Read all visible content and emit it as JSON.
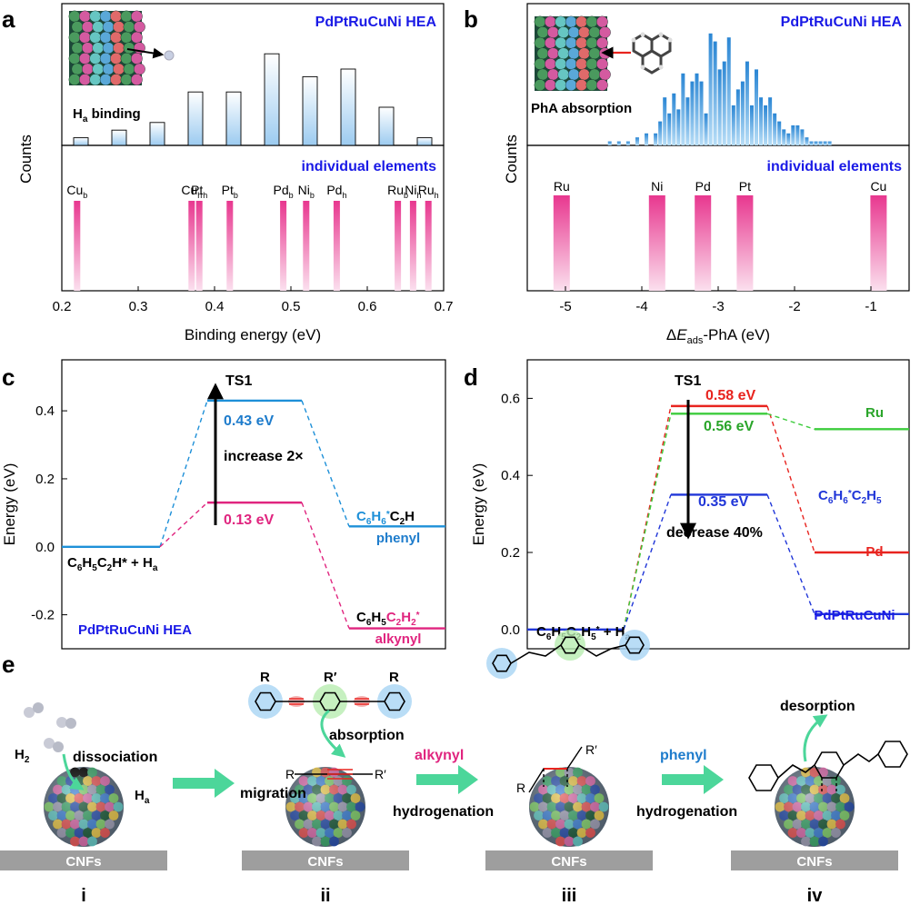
{
  "panel_labels": {
    "a": "a",
    "b": "b",
    "c": "c",
    "d": "d",
    "e": "e"
  },
  "colors": {
    "blue_text": "#1a1ae6",
    "bar_light_blue": "#bcdcf4",
    "bar_blue": "#3c96dc",
    "pink": "#e8378f",
    "pink_light": "#f9bcd8",
    "cyan_line": "#1e90d8",
    "magenta_line": "#e0257f",
    "red_line": "#e8241f",
    "green_line": "#3ccc3c",
    "navy_line": "#2036d8",
    "arrow_green": "#4cd69a",
    "support_grey": "#9e9e9e"
  },
  "panel_a": {
    "title": "PdPtRuCuNi HEA",
    "top_label_main": "H",
    "top_label_sub": "a",
    "top_label_rest": " binding",
    "bottom_title": "individual elements",
    "ylabel": "Counts",
    "xlabel": "Binding energy (eV)"
  },
  "panel_b": {
    "title": "PdPtRuCuNi HEA",
    "top_label": "PhA absorption",
    "bottom_title": "individual elements",
    "ylabel": "Counts",
    "xlabel_prefix": "Δ",
    "xlabel_italic": "E",
    "xlabel_sub": "ads",
    "xlabel_rest": "-PhA (eV)"
  },
  "panel_c": {
    "ylabel": "Energy (eV)",
    "ts_label": "TS1",
    "phenyl_barrier": "0.43 eV",
    "alkynyl_barrier": "0.13 eV",
    "increase_label": "increase 2×",
    "initial_state": "C6H5C2H* + Ha",
    "phenyl_product": "C6H6*C2H",
    "phenyl_word": "phenyl",
    "alkynyl_product": "C6H5C2H2*",
    "alkynyl_word": "alkynyl",
    "system": "PdPtRuCuNi HEA"
  },
  "panel_d": {
    "ylabel": "Energy (eV)",
    "ts_label": "TS1",
    "pd_barrier": "0.58 eV",
    "ru_barrier": "0.56 eV",
    "hea_barrier": "0.35 eV",
    "decrease_label": "decrease 40%",
    "initial_state": "C6H5C2H5* + Ha",
    "product": "C6H6*C2H5",
    "ru_label": "Ru",
    "pd_label": "Pd",
    "hea_label": "PdPtRuCuNi"
  },
  "panel_e": {
    "h2": "H2",
    "dissociation": "dissociation",
    "ha": "Ha",
    "support": "CNFs",
    "absorption": "absorption",
    "migration": "migration",
    "r_left": "R",
    "r_prime_top": "R′",
    "r_right": "R",
    "r_chain_left": "R",
    "r_chain_right": "R′",
    "alkynyl": "alkynyl",
    "hydrogenation": "hydrogenation",
    "phenyl": "phenyl",
    "desorption": "desorption",
    "steps": [
      "i",
      "ii",
      "iii",
      "iv"
    ]
  },
  "chart_data": [
    {
      "id": "a-top",
      "type": "bar",
      "title": "PdPtRuCuNi HEA",
      "xlabel": "Binding energy (eV)",
      "ylabel": "Counts",
      "xlim": [
        0.2,
        0.7
      ],
      "x": [
        0.225,
        0.275,
        0.325,
        0.375,
        0.425,
        0.475,
        0.525,
        0.575,
        0.625,
        0.675
      ],
      "values": [
        1,
        2,
        3,
        7,
        7,
        12,
        9,
        10,
        5,
        1
      ]
    },
    {
      "id": "a-bottom",
      "type": "bar",
      "title": "individual elements",
      "xlim": [
        0.2,
        0.7
      ],
      "xticks": [
        0.2,
        0.3,
        0.4,
        0.5,
        0.6,
        0.7
      ],
      "elements": [
        {
          "el": "Cu",
          "site": "b",
          "x": 0.22
        },
        {
          "el": "Cu",
          "site": "h",
          "x": 0.37
        },
        {
          "el": "Pt",
          "site": "h",
          "x": 0.38
        },
        {
          "el": "Pt",
          "site": "b",
          "x": 0.42
        },
        {
          "el": "Pd",
          "site": "b",
          "x": 0.49
        },
        {
          "el": "Ni",
          "site": "b",
          "x": 0.52
        },
        {
          "el": "Pd",
          "site": "h",
          "x": 0.56
        },
        {
          "el": "Ru",
          "site": "b",
          "x": 0.64
        },
        {
          "el": "Ni",
          "site": "h",
          "x": 0.66
        },
        {
          "el": "Ru",
          "site": "h",
          "x": 0.68
        }
      ]
    },
    {
      "id": "b-top",
      "type": "bar",
      "title": "PdPtRuCuNi HEA",
      "xlabel": "ΔEads-PhA (eV)",
      "ylabel": "Counts",
      "xlim": [
        -5.5,
        -0.5
      ],
      "x": [
        -4.42,
        -4.3,
        -4.18,
        -4.06,
        -3.94,
        -3.82,
        -3.76,
        -3.7,
        -3.64,
        -3.58,
        -3.52,
        -3.46,
        -3.4,
        -3.34,
        -3.28,
        -3.22,
        -3.16,
        -3.1,
        -3.04,
        -2.98,
        -2.92,
        -2.86,
        -2.8,
        -2.74,
        -2.68,
        -2.62,
        -2.56,
        -2.5,
        -2.44,
        -2.38,
        -2.32,
        -2.26,
        -2.2,
        -2.14,
        -2.08,
        -2.02,
        -1.96,
        -1.9,
        -1.84,
        -1.78,
        -1.72,
        -1.66,
        -1.6,
        -1.54
      ],
      "values": [
        1,
        1,
        1,
        2,
        3,
        3,
        6,
        12,
        8,
        13,
        9,
        18,
        12,
        16,
        18,
        16,
        8,
        28,
        26,
        19,
        21,
        27,
        10,
        14,
        16,
        21,
        10,
        19,
        12,
        10,
        12,
        8,
        6,
        4,
        3,
        5,
        5,
        4,
        2,
        1,
        1,
        1,
        1,
        1
      ]
    },
    {
      "id": "b-bottom",
      "type": "bar",
      "title": "individual elements",
      "xlim": [
        -5.5,
        -0.5
      ],
      "xticks": [
        -5,
        -4,
        -3,
        -2,
        -1
      ],
      "elements": [
        {
          "el": "Ru",
          "x": -5.05
        },
        {
          "el": "Ni",
          "x": -3.8
        },
        {
          "el": "Pd",
          "x": -3.2
        },
        {
          "el": "Pt",
          "x": -2.65
        },
        {
          "el": "Cu",
          "x": -0.9
        }
      ]
    },
    {
      "id": "c",
      "type": "line",
      "ylabel": "Energy (eV)",
      "ylim": [
        -0.3,
        0.55
      ],
      "yticks": [
        -0.2,
        0.0,
        0.2,
        0.4
      ],
      "series": [
        {
          "name": "phenyl",
          "values": [
            0.0,
            0.43,
            0.06
          ]
        },
        {
          "name": "alkynyl",
          "values": [
            0.0,
            0.13,
            -0.24
          ]
        }
      ]
    },
    {
      "id": "d",
      "type": "line",
      "ylabel": "Energy (eV)",
      "ylim": [
        -0.05,
        0.7
      ],
      "yticks": [
        0.0,
        0.2,
        0.4,
        0.6
      ],
      "series": [
        {
          "name": "Pd",
          "values": [
            0.0,
            0.58,
            0.2
          ]
        },
        {
          "name": "Ru",
          "values": [
            0.0,
            0.56,
            0.52
          ]
        },
        {
          "name": "PdPtRuCuNi",
          "values": [
            0.0,
            0.35,
            0.04
          ]
        }
      ]
    }
  ]
}
